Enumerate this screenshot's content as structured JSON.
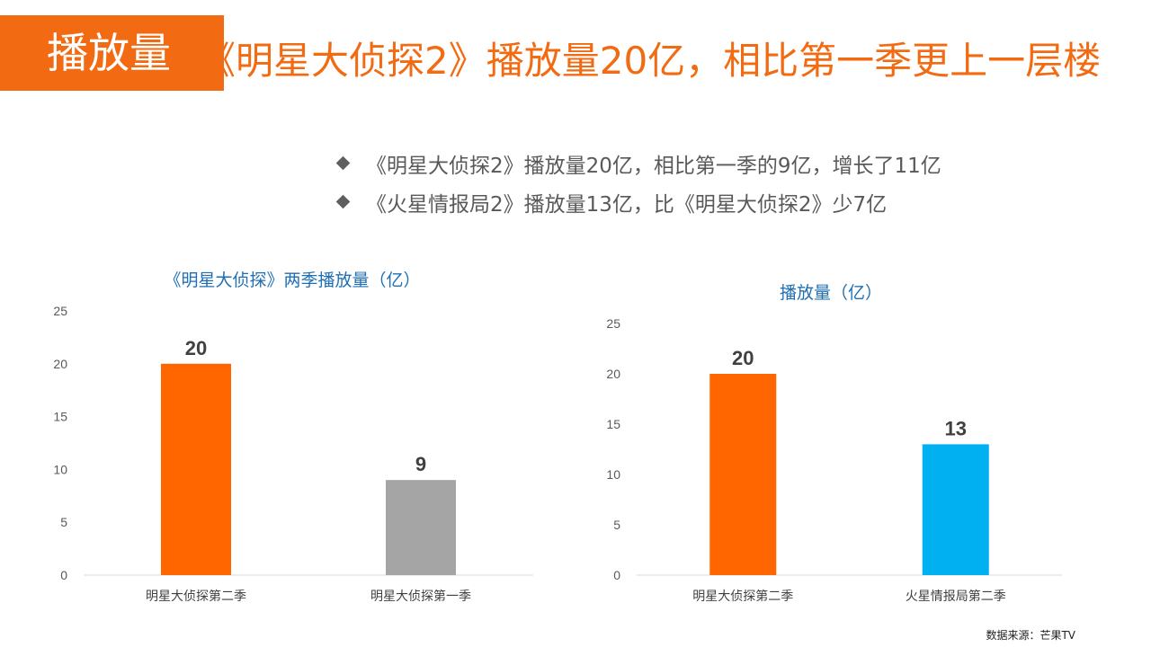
{
  "header": {
    "tag": "播放量",
    "headline": "《明星大侦探2》播放量20亿，相比第一季更上一层楼"
  },
  "bullets": [
    "《明星大侦探2》播放量20亿，相比第一季的9亿，增长了11亿",
    "《火星情报局2》播放量13亿，比《明星大侦探2》少7亿"
  ],
  "chart_data": [
    {
      "type": "bar",
      "title": "《明星大侦探》两季播放量（亿）",
      "categories": [
        "明星大侦探第二季",
        "明星大侦探第一季"
      ],
      "values": [
        20,
        9
      ],
      "colors": [
        "#FF6600",
        "#A5A5A5"
      ],
      "ylim": [
        0,
        25
      ],
      "yticks": [
        0,
        5,
        10,
        15,
        20,
        25
      ],
      "grid": false,
      "data_labels": true
    },
    {
      "type": "bar",
      "title": "播放量（亿）",
      "categories": [
        "明星大侦探第二季",
        "火星情报局第二季"
      ],
      "values": [
        20,
        13
      ],
      "colors": [
        "#FF6600",
        "#00B0F0"
      ],
      "ylim": [
        0,
        25
      ],
      "yticks": [
        0,
        5,
        10,
        15,
        20,
        25
      ],
      "grid": false,
      "data_labels": true
    }
  ],
  "footer": {
    "source": "数据来源：芒果TV"
  }
}
